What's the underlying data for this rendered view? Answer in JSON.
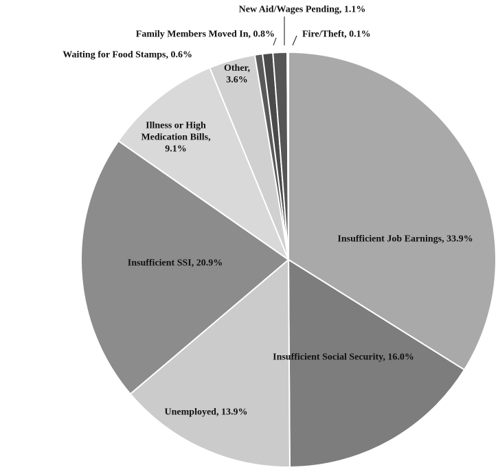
{
  "chart_data": {
    "type": "pie",
    "categories": [
      "Insufficient Job Earnings",
      "Insufficient Social Security",
      "Unemployed",
      "Insufficient SSI",
      "Illness or High Medication Bills",
      "Other",
      "Waiting for Food Stamps",
      "Family Members Moved In",
      "New Aid/Wages Pending",
      "Fire/Theft"
    ],
    "values": [
      33.9,
      16.0,
      13.9,
      20.9,
      9.1,
      3.6,
      0.6,
      0.8,
      1.1,
      0.1
    ],
    "value_labels": [
      "33.9%",
      "16.0%",
      "13.9%",
      "20.9%",
      "9.1%",
      "3.6%",
      "0.6%",
      "0.8%",
      "1.1%",
      "0.1%"
    ],
    "colors": [
      "#a9a9a9",
      "#7d7d7d",
      "#cbcbcb",
      "#8c8c8c",
      "#d9d9d9",
      "#d0d0d0",
      "#5a5a5a",
      "#4a4a4a",
      "#555555",
      "#6a6a6a"
    ]
  }
}
